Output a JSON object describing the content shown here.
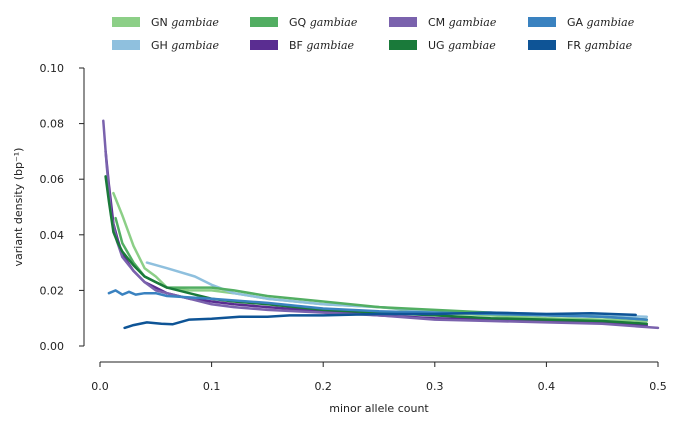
{
  "chart_data": {
    "type": "line",
    "title": "",
    "xlabel": "minor allele count",
    "ylabel": "variant density (bp⁻¹)",
    "xlim": [
      0,
      0.5
    ],
    "ylim": [
      0,
      0.1
    ],
    "x_ticks": [
      "0.0",
      "0.1",
      "0.2",
      "0.3",
      "0.4",
      "0.5"
    ],
    "y_ticks": [
      "0.00",
      "0.02",
      "0.04",
      "0.06",
      "0.08",
      "0.10"
    ],
    "grid": false,
    "legend_position": "top",
    "series": [
      {
        "name": "GN",
        "name_italic": "gambiae",
        "color": "#8ccf87",
        "x": [
          0.012,
          0.02,
          0.03,
          0.04,
          0.05,
          0.06,
          0.08,
          0.1,
          0.12,
          0.15,
          0.2,
          0.25,
          0.3,
          0.35,
          0.4,
          0.45,
          0.49
        ],
        "y": [
          0.055,
          0.047,
          0.036,
          0.028,
          0.025,
          0.021,
          0.02,
          0.02,
          0.019,
          0.017,
          0.015,
          0.014,
          0.012,
          0.011,
          0.01,
          0.0095,
          0.009
        ]
      },
      {
        "name": "GH",
        "name_italic": "gambiae",
        "color": "#8fc0de",
        "x": [
          0.042,
          0.06,
          0.085,
          0.1,
          0.12,
          0.15,
          0.2,
          0.25,
          0.3,
          0.35,
          0.4,
          0.45,
          0.49
        ],
        "y": [
          0.03,
          0.028,
          0.025,
          0.022,
          0.019,
          0.017,
          0.015,
          0.014,
          0.0125,
          0.012,
          0.0115,
          0.011,
          0.0105
        ]
      },
      {
        "name": "GQ",
        "name_italic": "gambiae",
        "color": "#52ae62",
        "x": [
          0.014,
          0.02,
          0.03,
          0.04,
          0.05,
          0.06,
          0.08,
          0.1,
          0.12,
          0.15,
          0.2,
          0.25,
          0.3,
          0.35,
          0.4,
          0.45,
          0.49
        ],
        "y": [
          0.046,
          0.037,
          0.03,
          0.025,
          0.023,
          0.021,
          0.021,
          0.021,
          0.02,
          0.018,
          0.016,
          0.014,
          0.013,
          0.012,
          0.011,
          0.0105,
          0.0095
        ]
      },
      {
        "name": "BF",
        "name_italic": "gambiae",
        "color": "#5a2d91",
        "x": [
          0.005,
          0.008,
          0.012,
          0.016,
          0.02,
          0.03,
          0.04,
          0.05,
          0.06,
          0.08,
          0.1,
          0.12,
          0.15,
          0.2,
          0.25,
          0.3,
          0.35,
          0.4,
          0.45,
          0.49
        ],
        "y": [
          0.07,
          0.058,
          0.044,
          0.038,
          0.033,
          0.027,
          0.023,
          0.021,
          0.019,
          0.017,
          0.016,
          0.015,
          0.014,
          0.0125,
          0.011,
          0.01,
          0.0095,
          0.009,
          0.0085,
          0.0075
        ]
      },
      {
        "name": "CM",
        "name_italic": "gambiae",
        "color": "#7a62ad",
        "x": [
          0.003,
          0.006,
          0.01,
          0.015,
          0.02,
          0.03,
          0.04,
          0.05,
          0.06,
          0.08,
          0.1,
          0.12,
          0.15,
          0.2,
          0.25,
          0.3,
          0.35,
          0.4,
          0.45,
          0.5
        ],
        "y": [
          0.081,
          0.065,
          0.047,
          0.038,
          0.032,
          0.027,
          0.023,
          0.02,
          0.019,
          0.017,
          0.015,
          0.014,
          0.013,
          0.012,
          0.011,
          0.0095,
          0.009,
          0.0085,
          0.008,
          0.0065
        ]
      },
      {
        "name": "UG",
        "name_italic": "gambiae",
        "color": "#1a7a3a",
        "x": [
          0.005,
          0.008,
          0.012,
          0.016,
          0.02,
          0.03,
          0.04,
          0.05,
          0.06,
          0.08,
          0.1,
          0.12,
          0.15,
          0.2,
          0.25,
          0.3,
          0.35,
          0.4,
          0.45,
          0.49
        ],
        "y": [
          0.061,
          0.052,
          0.041,
          0.037,
          0.034,
          0.029,
          0.025,
          0.023,
          0.021,
          0.019,
          0.017,
          0.016,
          0.015,
          0.013,
          0.012,
          0.011,
          0.01,
          0.0095,
          0.009,
          0.008
        ]
      },
      {
        "name": "GA",
        "name_italic": "gambiae",
        "color": "#3a82c0",
        "x": [
          0.008,
          0.014,
          0.02,
          0.026,
          0.032,
          0.04,
          0.05,
          0.06,
          0.08,
          0.1,
          0.15,
          0.2,
          0.25,
          0.3,
          0.35,
          0.4,
          0.45,
          0.49
        ],
        "y": [
          0.019,
          0.02,
          0.0185,
          0.0195,
          0.0185,
          0.019,
          0.019,
          0.018,
          0.0175,
          0.017,
          0.0155,
          0.0135,
          0.0125,
          0.012,
          0.0115,
          0.011,
          0.0105,
          0.0095
        ]
      },
      {
        "name": "FR",
        "name_italic": "gambiae",
        "color": "#0e5496",
        "x": [
          0.022,
          0.03,
          0.042,
          0.055,
          0.065,
          0.08,
          0.1,
          0.125,
          0.15,
          0.17,
          0.2,
          0.25,
          0.3,
          0.35,
          0.4,
          0.44,
          0.48
        ],
        "y": [
          0.0065,
          0.0075,
          0.0085,
          0.008,
          0.0078,
          0.0095,
          0.0098,
          0.0105,
          0.0105,
          0.011,
          0.011,
          0.0115,
          0.0115,
          0.012,
          0.0115,
          0.0118,
          0.0112
        ]
      }
    ]
  }
}
